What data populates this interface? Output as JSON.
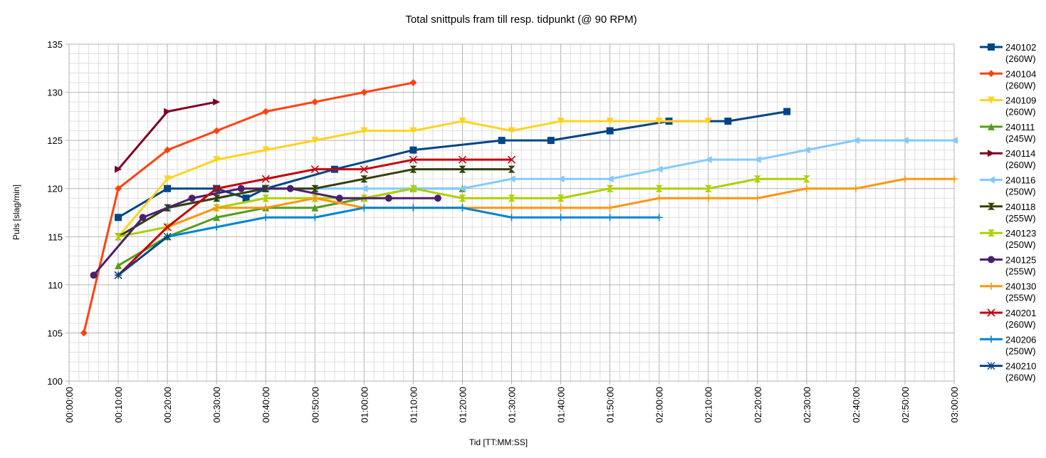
{
  "chart_data": {
    "type": "line",
    "title": "Total snittpuls fram till resp. tidpunkt (@ 90 RPM)",
    "xlabel": "Tid [TT:MM:SS]",
    "ylabel": "Puls [slag/min]",
    "x_unit": "minutes",
    "xlim": [
      0,
      180
    ],
    "ylim": [
      100,
      135
    ],
    "y_major_step": 5,
    "y_minor_step": 1,
    "x_major_step": 10,
    "x_minor_step": 2,
    "x_tick_labels": [
      "00:00:00",
      "00:10:00",
      "00:20:00",
      "00:30:00",
      "00:40:00",
      "00:50:00",
      "01:00:00",
      "01:10:00",
      "01:20:00",
      "01:30:00",
      "01:40:00",
      "01:50:00",
      "02:00:00",
      "02:10:00",
      "02:20:00",
      "02:30:00",
      "02:40:00",
      "02:50:00",
      "03:00:00"
    ],
    "y_tick_labels": [
      "100",
      "105",
      "110",
      "115",
      "120",
      "125",
      "130",
      "135"
    ],
    "grid": true,
    "legend_position": "right",
    "series": [
      {
        "name": "240102",
        "label2": "(260W)",
        "color": "#004586",
        "marker": "square",
        "x": [
          10,
          20,
          30,
          36,
          40,
          54,
          60,
          70,
          80,
          88,
          98,
          110,
          122,
          134,
          146
        ],
        "y": [
          117,
          120,
          120,
          119,
          120,
          122,
          null,
          124,
          null,
          125,
          125,
          126,
          127,
          127,
          128
        ]
      },
      {
        "name": "240104",
        "label2": "(260W)",
        "color": "#ff420e",
        "marker": "diamond",
        "x": [
          3,
          10,
          20,
          30,
          40,
          50,
          60,
          70
        ],
        "y": [
          105,
          120,
          124,
          126,
          128,
          129,
          130,
          131
        ]
      },
      {
        "name": "240109",
        "label2": "(260W)",
        "color": "#ffd320",
        "marker": "down-triangle",
        "x": [
          10,
          20,
          30,
          40,
          50,
          60,
          70,
          80,
          90,
          100,
          110,
          120,
          130
        ],
        "y": [
          115,
          121,
          123,
          124,
          125,
          126,
          126,
          127,
          126,
          127,
          127,
          127,
          127
        ]
      },
      {
        "name": "240111",
        "label2": "(245W)",
        "color": "#579d1c",
        "marker": "up-triangle",
        "x": [
          10,
          20,
          30,
          40,
          50,
          60,
          70,
          80
        ],
        "y": [
          112,
          115,
          117,
          118,
          118,
          119,
          120,
          120
        ]
      },
      {
        "name": "240114",
        "label2": "(260W)",
        "color": "#7e0021",
        "marker": "right-triangle",
        "x": [
          10,
          20,
          30
        ],
        "y": [
          122,
          128,
          129
        ]
      },
      {
        "name": "240116",
        "label2": "(250W)",
        "color": "#83caff",
        "marker": "left-triangle",
        "x": [
          20,
          30,
          40,
          50,
          60,
          70,
          80,
          90,
          100,
          110,
          120,
          130,
          140,
          150,
          160,
          170,
          180
        ],
        "y": [
          118,
          119,
          120,
          120,
          120,
          120,
          120,
          121,
          121,
          121,
          122,
          123,
          123,
          124,
          125,
          125,
          125
        ]
      },
      {
        "name": "240118",
        "label2": "(255W)",
        "color": "#314004",
        "marker": "bowtie",
        "x": [
          10,
          20,
          30,
          40,
          50,
          60,
          70,
          80,
          90
        ],
        "y": [
          115,
          118,
          119,
          120,
          120,
          121,
          122,
          122,
          122
        ]
      },
      {
        "name": "240123",
        "label2": "(250W)",
        "color": "#aecf00",
        "marker": "hourglass",
        "x": [
          10,
          20,
          30,
          40,
          50,
          60,
          70,
          80,
          90,
          100,
          110,
          120,
          130,
          140,
          150
        ],
        "y": [
          115,
          116,
          118,
          119,
          119,
          119,
          120,
          119,
          119,
          119,
          120,
          120,
          120,
          121,
          121
        ]
      },
      {
        "name": "240125",
        "label2": "(255W)",
        "color": "#4b1f6f",
        "marker": "circle",
        "x": [
          5,
          15,
          25,
          35,
          45,
          55,
          65,
          75
        ],
        "y": [
          111,
          117,
          119,
          120,
          120,
          119,
          119,
          119
        ]
      },
      {
        "name": "240130",
        "label2": "(255W)",
        "color": "#ff950e",
        "marker": "plus",
        "x": [
          10,
          20,
          30,
          40,
          50,
          60,
          70,
          80,
          90,
          100,
          110,
          120,
          130,
          140,
          150,
          160,
          170,
          180
        ],
        "y": [
          111,
          116,
          118,
          118,
          119,
          118,
          118,
          118,
          118,
          118,
          118,
          119,
          119,
          119,
          120,
          120,
          121,
          121
        ]
      },
      {
        "name": "240201",
        "label2": "(260W)",
        "color": "#c5000b",
        "marker": "x",
        "x": [
          10,
          20,
          30,
          40,
          50,
          60,
          70,
          80,
          90
        ],
        "y": [
          111,
          116,
          120,
          121,
          122,
          122,
          123,
          123,
          123
        ]
      },
      {
        "name": "240206",
        "label2": "(250W)",
        "color": "#0084d1",
        "marker": "plus",
        "x": [
          20,
          30,
          40,
          50,
          60,
          70,
          80,
          90,
          100,
          110,
          120
        ],
        "y": [
          115,
          116,
          117,
          117,
          118,
          118,
          118,
          117,
          117,
          117,
          117
        ]
      },
      {
        "name": "240210",
        "label2": "(260W)",
        "color": "#004586",
        "marker": "star",
        "x": [
          10,
          20
        ],
        "y": [
          111,
          115
        ]
      }
    ]
  }
}
